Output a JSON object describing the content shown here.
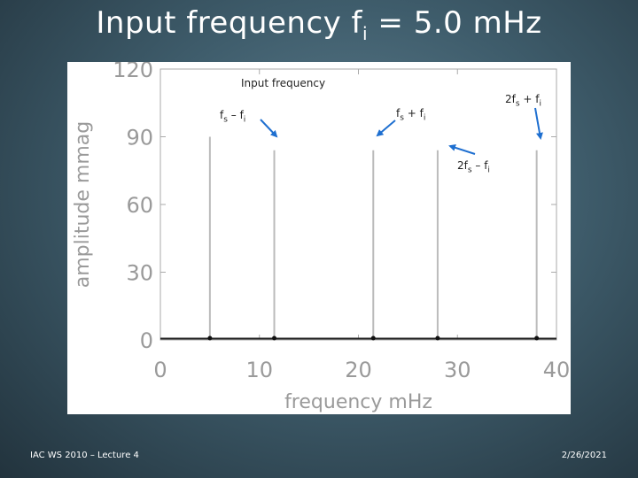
{
  "slide": {
    "title_main": "Input frequency f",
    "title_sub": "i",
    "title_value": " = 5.0 mHz",
    "footer_left": "IAC WS 2010 – Lecture 4",
    "footer_right": "2/26/2021"
  },
  "annotations": {
    "input": "Input frequency",
    "a_f": "f",
    "a_s": "s",
    "a_mid": " – f",
    "a_i": "i",
    "b_f": "f",
    "b_s": "s",
    "b_mid": " + f",
    "b_i": "i",
    "c_pre": "2f",
    "c_s": "s",
    "c_mid": " + f",
    "c_i": "i",
    "d_pre": "2f",
    "d_s": "s",
    "d_mid": " – f",
    "d_i": "i"
  },
  "chart_data": {
    "type": "bar",
    "xlabel": "frequency  mHz",
    "ylabel": "amplitude  mmag",
    "xlim": [
      0,
      40
    ],
    "ylim": [
      0,
      120
    ],
    "xticks": [
      0,
      10,
      20,
      30,
      40
    ],
    "yticks": [
      0,
      30,
      60,
      90,
      120
    ],
    "x": [
      5.0,
      11.5,
      21.5,
      28.0,
      38.0
    ],
    "values": [
      90,
      84,
      84,
      84,
      84
    ],
    "grid": false,
    "line_color": "#bbbbbb",
    "axis_color": "#aaaaaa",
    "label_color": "#9a9a9a"
  }
}
